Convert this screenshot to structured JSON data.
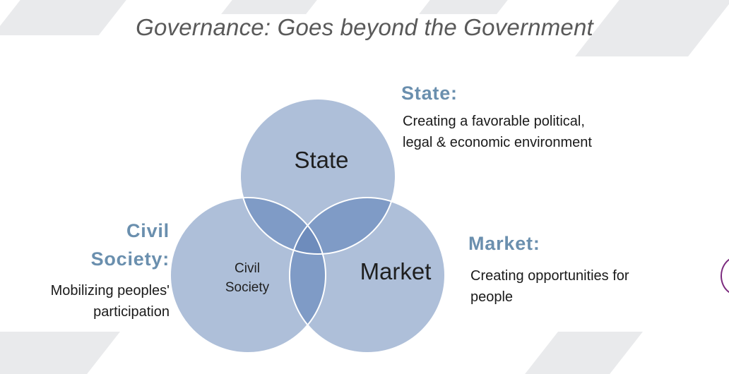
{
  "title": "Governance:  Goes beyond  the Government",
  "state": {
    "heading": "State:",
    "inside_label": "State",
    "description_lines": [
      "Creating a favorable political,",
      "legal & economic environment"
    ]
  },
  "market": {
    "heading": "Market:",
    "inside_label": "Market",
    "description_lines": [
      "Creating opportunities for",
      "people"
    ]
  },
  "civil_society": {
    "heading_lines": [
      "Civil",
      "Society:"
    ],
    "inside_label_lines": [
      "Civil",
      "Society"
    ],
    "description_lines": [
      "Mobilizing peoples'",
      "participation"
    ]
  },
  "colors": {
    "circle_fill": "#aebfd9",
    "overlap_fill": "#7f9bc6",
    "center_fill": "#6e8cbc",
    "circle_stroke": "#ffffff",
    "heading": "#6a8fae",
    "title": "#595959",
    "accent_arc": "#7b2a7e"
  }
}
